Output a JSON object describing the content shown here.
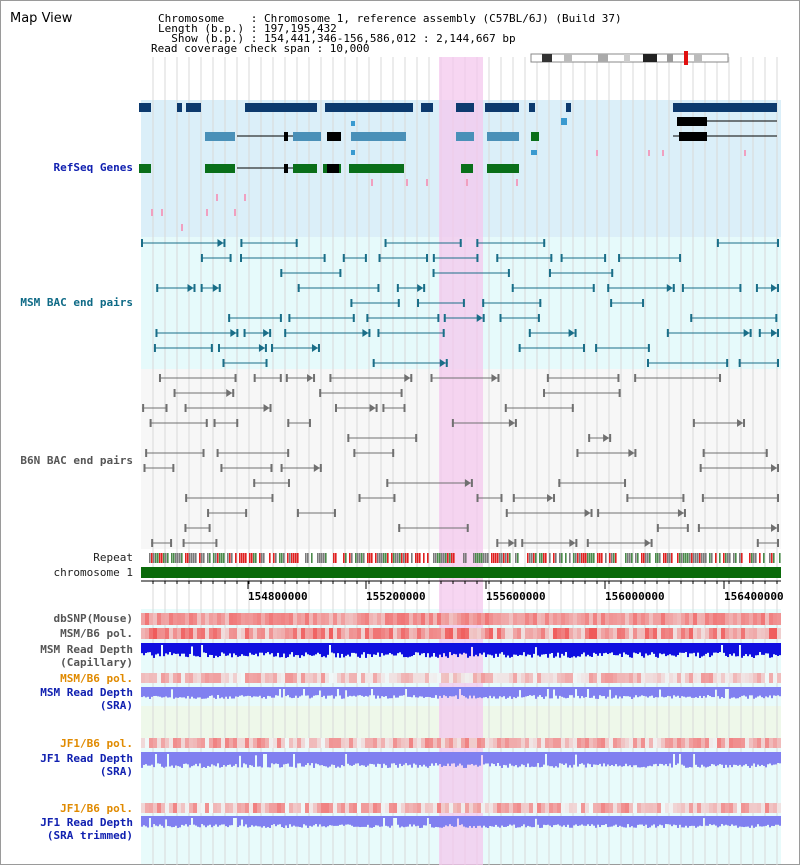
{
  "title": "Map View",
  "info": {
    "chromosome": "Chromosome    : Chromosome 1, reference assembly (C57BL/6J) (Build 37)",
    "length": "Length (b.p.) : 197,195,432",
    "show": "  Show (b.p.) : 154,441,346-156,586,012 : 2,144,667 bp",
    "coverage": "Read coverage check span : 10,000"
  },
  "tracks": {
    "refseq": "RefSeq Genes",
    "msm_bac": "MSM BAC end pairs",
    "b6n_bac": "B6N BAC end pairs",
    "repeat": "Repeat",
    "chromosome": "chromosome 1",
    "dbsnp": "dbSNP(Mouse)",
    "msm_b6_pol_1": "MSM/B6 pol.",
    "msm_depth_cap_1": "MSM Read Depth",
    "msm_depth_cap_2": "(Capillary)",
    "msm_b6_pol_2": "MSM/B6 pol.",
    "msm_depth_sra_1": "MSM Read Depth",
    "msm_depth_sra_2": "(SRA)",
    "jf1_b6_pol_1": "JF1/B6 pol.",
    "jf1_depth_sra_1": "JF1 Read Depth",
    "jf1_depth_sra_2": "(SRA)",
    "jf1_b6_pol_2": "JF1/B6 pol.",
    "jf1_depth_trim_1": "JF1 Read Depth",
    "jf1_depth_trim_2": "(SRA trimmed)"
  },
  "axis": {
    "ticks": [
      "154800000",
      "155200000",
      "155600000",
      "156000000",
      "156400000"
    ]
  },
  "colors": {
    "refseq_dark": "#0d3a6e",
    "refseq_mid": "#4a90b8",
    "refseq_green": "#0a6f1a",
    "msm_pair": "#1a6e88",
    "b6n_pair": "#707070",
    "highlight": "#f4c8ee",
    "chromosome": "#0a6a0a",
    "depth_dark": "#1010e0",
    "depth_light": "#8080f0"
  }
}
